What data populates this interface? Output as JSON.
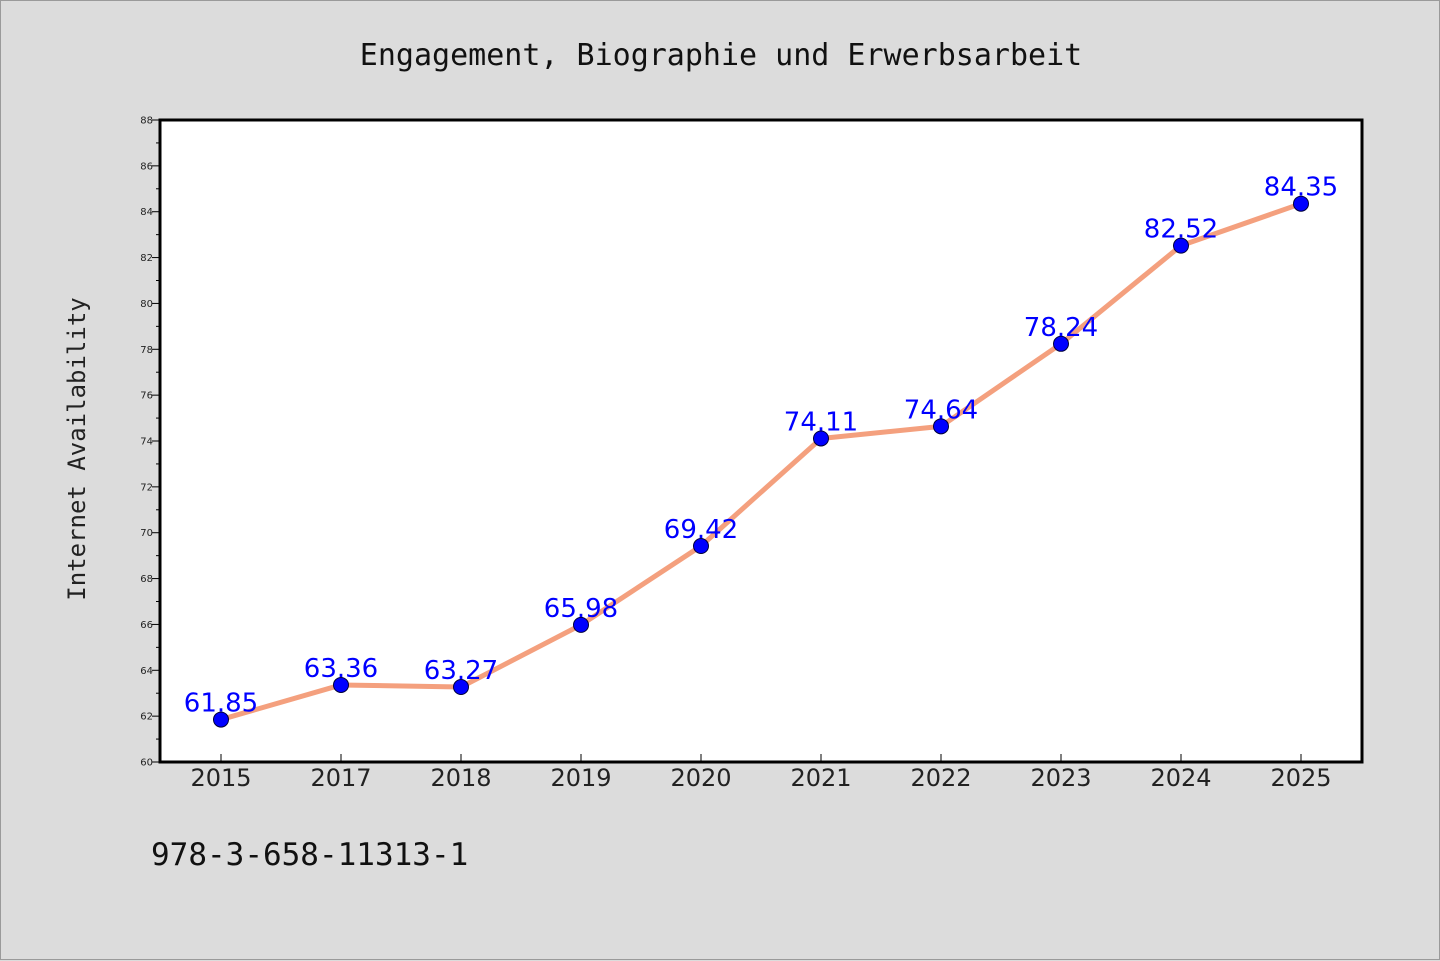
{
  "chart_data": {
    "type": "line",
    "title": "Engagement, Biographie und Erwerbsarbeit",
    "xlabel": "",
    "ylabel": "Internet Availability",
    "categories": [
      "2015",
      "2017",
      "2018",
      "2019",
      "2020",
      "2021",
      "2022",
      "2023",
      "2024",
      "2025"
    ],
    "series": [
      {
        "values": [
          61.85,
          63.36,
          63.27,
          65.98,
          69.42,
          74.11,
          74.64,
          78.24,
          82.52,
          84.35
        ]
      }
    ],
    "data_labels": [
      "61.85",
      "63.36",
      "63.27",
      "65.98",
      "69.42",
      "74.11",
      "74.64",
      "78.24",
      "82.52",
      "84.35"
    ],
    "ylim": [
      60,
      88
    ],
    "yticks": [
      60,
      62,
      64,
      66,
      68,
      70,
      72,
      74,
      76,
      78,
      80,
      82,
      84,
      86,
      88
    ],
    "grid": false,
    "legend": "none",
    "colors": {
      "line": "#f4a07e",
      "marker": "#0000ff",
      "data_label": "#0000ff",
      "background": "#dcdcdc",
      "plot_background": "#ffffff"
    }
  },
  "footer": {
    "isbn": "978-3-658-11313-1"
  }
}
